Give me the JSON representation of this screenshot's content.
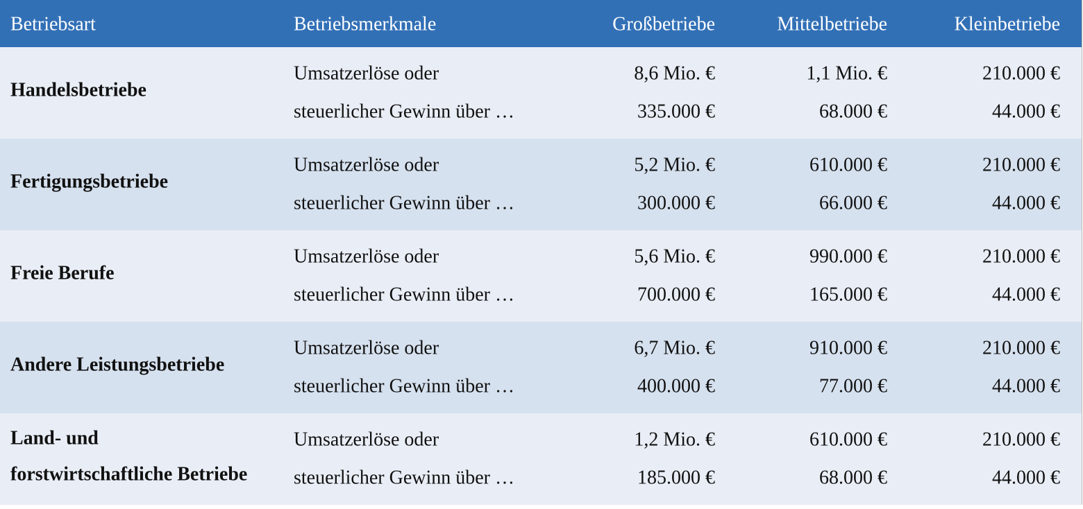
{
  "table": {
    "header": [
      "Betriebsart",
      "Betriebsmerkmale",
      "Großbetriebe",
      "Mittelbetriebe",
      "Kleinbetriebe"
    ],
    "rows": [
      {
        "name": [
          "Handelsbetriebe"
        ],
        "features": [
          "Umsatzerlöse oder",
          "steuerlicher Gewinn über …"
        ],
        "values": [
          [
            "8,6 Mio. €",
            "335.000 €"
          ],
          [
            "1,1 Mio. €",
            "68.000 €"
          ],
          [
            "210.000 €",
            "44.000 €"
          ]
        ]
      },
      {
        "name": [
          "Fertigungsbetriebe"
        ],
        "features": [
          "Umsatzerlöse oder",
          "steuerlicher Gewinn über …"
        ],
        "values": [
          [
            "5,2 Mio. €",
            "300.000 €"
          ],
          [
            "610.000 €",
            "66.000 €"
          ],
          [
            "210.000 €",
            "44.000 €"
          ]
        ]
      },
      {
        "name": [
          "Freie Berufe"
        ],
        "features": [
          "Umsatzerlöse oder",
          "steuerlicher Gewinn über …"
        ],
        "values": [
          [
            "5,6 Mio. €",
            "700.000 €"
          ],
          [
            "990.000 €",
            "165.000 €"
          ],
          [
            "210.000 €",
            "44.000 €"
          ]
        ]
      },
      {
        "name": [
          "Andere Leistungsbetriebe"
        ],
        "features": [
          "Umsatzerlöse oder",
          "steuerlicher Gewinn über …"
        ],
        "values": [
          [
            "6,7 Mio. €",
            "400.000 €"
          ],
          [
            "910.000 €",
            "77.000 €"
          ],
          [
            "210.000 €",
            "44.000 €"
          ]
        ]
      },
      {
        "name": [
          "Land- und",
          "forstwirtschaftliche Betriebe"
        ],
        "features": [
          "Umsatzerlöse oder",
          "steuerlicher Gewinn über …"
        ],
        "values": [
          [
            "1,2 Mio. €",
            "185.000 €"
          ],
          [
            "610.000 €",
            "68.000 €"
          ],
          [
            "210.000 €",
            "44.000 €"
          ]
        ]
      }
    ]
  }
}
